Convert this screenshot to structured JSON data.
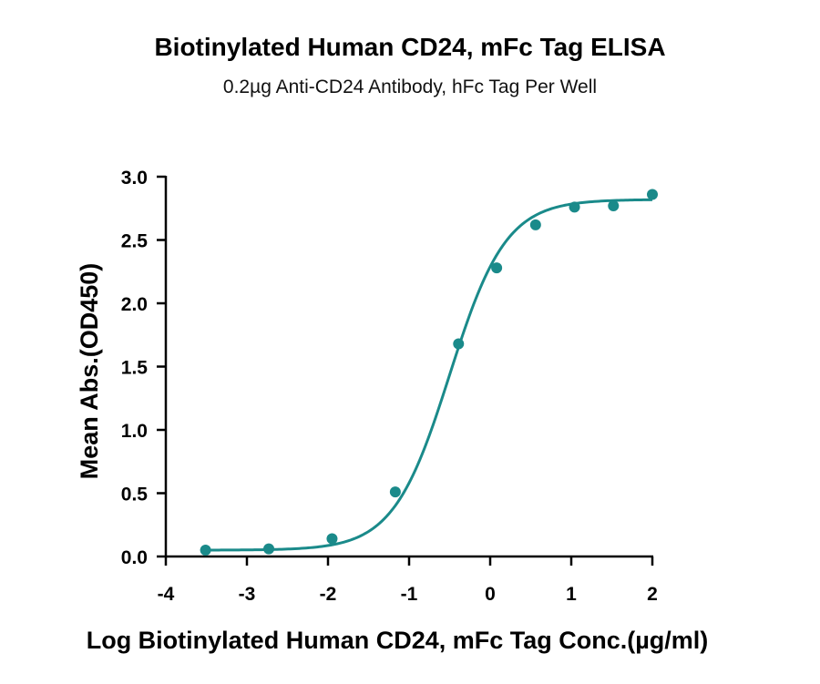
{
  "chart_data": {
    "type": "scatter",
    "title": "Biotinylated Human CD24, mFc Tag ELISA",
    "subtitle": "0.2µg Anti-CD24 Antibody, hFc Tag Per Well",
    "xlabel": "Log Biotinylated Human CD24, mFc Tag Conc.(µg/ml)",
    "ylabel": "Mean Abs.(OD450)",
    "xlim": [
      -4,
      2
    ],
    "ylim": [
      0,
      3
    ],
    "x_ticks": [
      "-4",
      "-3",
      "-2",
      "-1",
      "0",
      "1",
      "2"
    ],
    "y_ticks": [
      "0.0",
      "0.5",
      "1.0",
      "1.5",
      "2.0",
      "2.5",
      "3.0"
    ],
    "grid": false,
    "series": [
      {
        "color": "#1a8a8a",
        "points": [
          {
            "x": -3.51,
            "y": 0.05
          },
          {
            "x": -2.73,
            "y": 0.06
          },
          {
            "x": -1.95,
            "y": 0.14
          },
          {
            "x": -1.17,
            "y": 0.51
          },
          {
            "x": -0.39,
            "y": 1.68
          },
          {
            "x": 0.08,
            "y": 2.28
          },
          {
            "x": 0.56,
            "y": 2.62
          },
          {
            "x": 1.04,
            "y": 2.76
          },
          {
            "x": 1.52,
            "y": 2.77
          },
          {
            "x": 2.0,
            "y": 2.86
          }
        ],
        "fit": {
          "model": "4PL",
          "bottom": 0.05,
          "top": 2.82,
          "log_ec50": -0.5,
          "hill": 1.25
        }
      }
    ]
  }
}
